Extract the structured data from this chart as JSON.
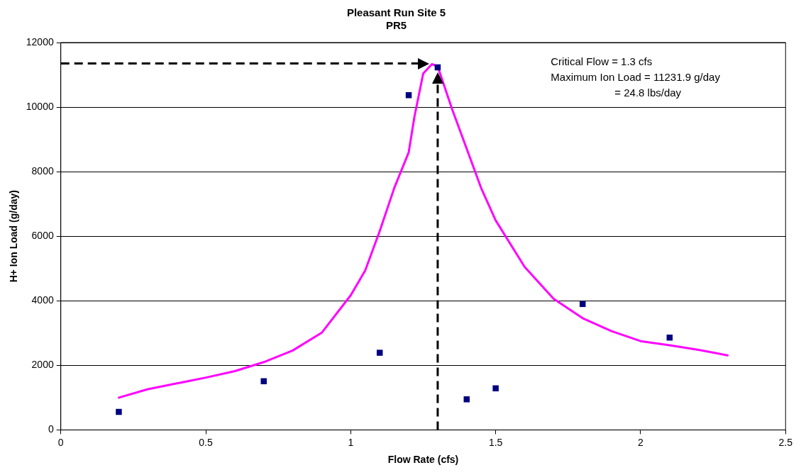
{
  "chart_data": {
    "type": "scatter",
    "title": "Pleasant Run Site 5",
    "subtitle": "PR5",
    "xlabel": "Flow Rate (cfs)",
    "ylabel": "H+ Ion Load (g/day)",
    "xlim": [
      0,
      2.5
    ],
    "xticks": [
      0,
      0.5,
      1,
      1.5,
      2,
      2.5
    ],
    "ylim": [
      0,
      12000
    ],
    "yticks": [
      0,
      2000,
      4000,
      6000,
      8000,
      10000,
      12000
    ],
    "grid": "y",
    "legend": false,
    "series": [
      {
        "type": "scatter",
        "marker": "square",
        "color": "#000080",
        "x": [
          0.2,
          0.7,
          1.1,
          1.2,
          1.3,
          1.4,
          1.5,
          1.8,
          2.1
        ],
        "values": [
          560,
          1510,
          2390,
          10370,
          11230,
          950,
          1290,
          3900,
          2860
        ]
      },
      {
        "type": "line",
        "marker": "none",
        "color": "#ff00ff",
        "x": [
          0.2,
          0.3,
          0.4,
          0.5,
          0.6,
          0.7,
          0.8,
          0.9,
          1.0,
          1.05,
          1.1,
          1.15,
          1.2,
          1.22,
          1.25,
          1.28,
          1.3,
          1.35,
          1.4,
          1.45,
          1.5,
          1.6,
          1.7,
          1.8,
          1.9,
          2.0,
          2.1,
          2.2,
          2.3
        ],
        "values": [
          1000,
          1260,
          1440,
          1620,
          1820,
          2100,
          2460,
          3010,
          4170,
          4940,
          6160,
          7490,
          8600,
          9710,
          11040,
          11330,
          11260,
          9930,
          8710,
          7490,
          6490,
          5050,
          4060,
          3460,
          3060,
          2750,
          2620,
          2480,
          2310
        ]
      }
    ],
    "ref_lines": [
      {
        "axis": "x",
        "value": 1.3,
        "color": "#000000",
        "line_style": "dashed"
      },
      {
        "axis": "y",
        "value": 11350,
        "color": "#000000",
        "line_style": "dashed"
      }
    ],
    "annotations": [
      "Critical Flow = 1.3 cfs",
      "Maximum Ion Load = 11231.9 g/day",
      "= 24.8 lbs/day"
    ]
  }
}
